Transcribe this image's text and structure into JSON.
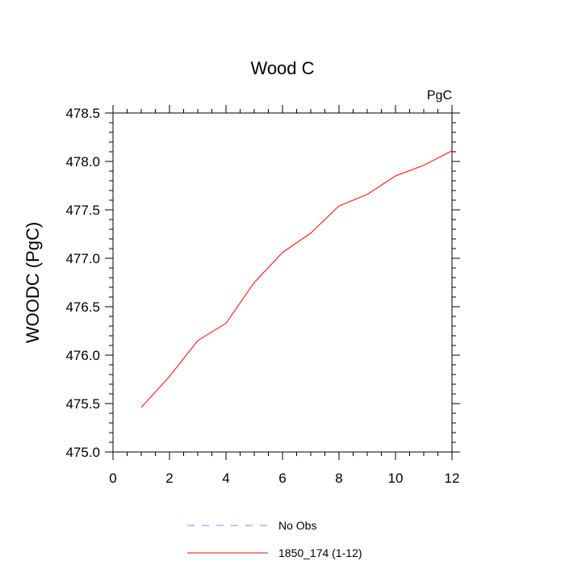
{
  "chart_data": {
    "type": "line",
    "title": "Wood C",
    "units_label": "PgC",
    "xlabel": "",
    "ylabel": "WOODC  (PgC)",
    "xlim": [
      0,
      12
    ],
    "ylim": [
      475.0,
      478.5
    ],
    "x_ticks": [
      "0",
      "2",
      "4",
      "6",
      "8",
      "10",
      "12"
    ],
    "y_ticks": [
      "475.0",
      "475.5",
      "476.0",
      "476.5",
      "477.0",
      "477.5",
      "478.0",
      "478.5"
    ],
    "grid": false,
    "legend_position": "bottom",
    "series": [
      {
        "name": "No Obs",
        "color": "#8080ff",
        "dash": "dashed",
        "x": [],
        "y": []
      },
      {
        "name": "1850_174 (1-12)",
        "color": "#ff0000",
        "dash": "solid",
        "x": [
          1,
          2,
          3,
          4,
          5,
          6,
          7,
          8,
          9,
          10,
          11,
          12
        ],
        "y": [
          475.46,
          475.78,
          476.15,
          476.33,
          476.75,
          477.06,
          477.26,
          477.54,
          477.66,
          477.85,
          477.96,
          478.11
        ]
      }
    ]
  }
}
